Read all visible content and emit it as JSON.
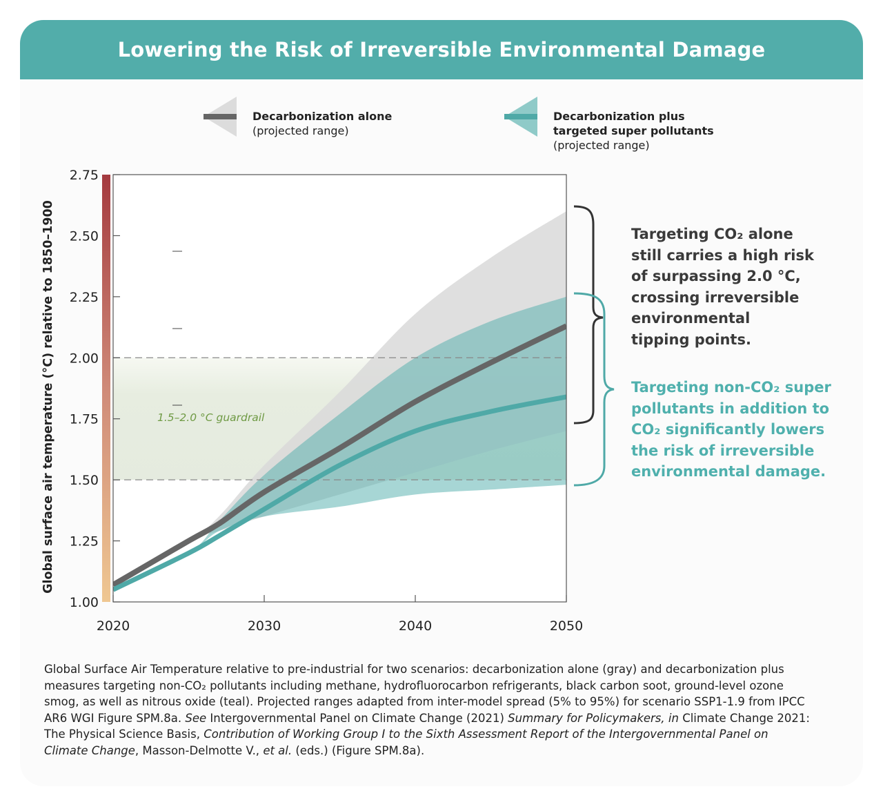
{
  "title": "Lowering the Risk of Irreversible Environmental Damage",
  "legend": [
    {
      "name": "Decarbonization alone",
      "sub": "(projected range)",
      "color": "#666666",
      "band_color": "#dcdcdc"
    },
    {
      "name": "Decarbonization plus targeted super pollutants",
      "name_line1": "Decarbonization plus",
      "name_line2": "targeted super pollutants",
      "sub": "(projected range)",
      "color": "#4fa9a7",
      "band_color": "#8fcac8"
    }
  ],
  "annotations": {
    "gray": [
      "Targeting CO₂ alone",
      "still carries a high risk",
      "of surpassing 2.0 °C,",
      "crossing irreversible",
      "environmental",
      "tipping points."
    ],
    "teal": [
      "Targeting non-CO₂ super",
      "pollutants in addition to",
      "CO₂ significantly lowers",
      "the risk of irreversible",
      "environmental damage."
    ]
  },
  "caption": {
    "p1": "Global Surface Air Temperature relative to pre-industrial for two scenarios: decarbonization alone (gray) and decarbonization plus measures targeting non-CO₂ pollutants including methane, hydrofluorocarbon refrigerants, black carbon soot, ground-level ozone smog, as well as nitrous oxide (teal). Projected ranges adapted from inter-model spread (5% to 95%) for scenario SSP1-1.9 from IPCC AR6 WGI Figure SPM.8a. ",
    "see": "See",
    "p2": " Intergovernmental Panel on Climate Change (2021) ",
    "i1": "Summary for Policymakers, in",
    "p3": " Climate Change 2021: The Physical Science Basis, ",
    "i2": "Contribution of Working Group I to the Sixth Assessment Report of the Intergovernmental Panel on Climate Change",
    "p4": ", Masson-Delmotte V., ",
    "i3": "et al.",
    "p5": " (eds.) (Figure SPM.8a)."
  },
  "chart_data": {
    "type": "line",
    "ylabel": "Global surface air temperature (°C) relative to 1850–1900",
    "xlabel": "",
    "xlim": [
      2020,
      2050
    ],
    "ylim": [
      1.0,
      2.75
    ],
    "xticks": [
      "2020",
      "2030",
      "2040",
      "2050"
    ],
    "yticks": [
      "1.00",
      "1.25",
      "1.50",
      "1.75",
      "2.00",
      "2.25",
      "2.50",
      "2.75"
    ],
    "grid": false,
    "guardrail": {
      "label": "1.5–2.0 °C guardrail",
      "range": [
        1.5,
        2.0
      ],
      "color": "#6f9a45"
    },
    "x": [
      2020,
      2025,
      2027,
      2030,
      2035,
      2040,
      2045,
      2050
    ],
    "series": [
      {
        "name": "Decarbonization alone",
        "color": "#666666",
        "band_color": "#d9d9d9",
        "values": [
          1.07,
          1.25,
          1.32,
          1.45,
          1.63,
          1.82,
          1.98,
          2.13
        ],
        "upper": [
          1.07,
          1.25,
          1.35,
          1.56,
          1.86,
          2.18,
          2.41,
          2.6
        ],
        "lower": [
          1.07,
          1.25,
          1.29,
          1.35,
          1.44,
          1.53,
          1.62,
          1.7
        ]
      },
      {
        "name": "Decarbonization plus targeted super pollutants",
        "color": "#4fa9a7",
        "band_color": "#4fadab",
        "values": [
          1.05,
          1.2,
          1.27,
          1.38,
          1.56,
          1.7,
          1.78,
          1.84
        ],
        "upper": [
          1.05,
          1.2,
          1.33,
          1.52,
          1.77,
          2.0,
          2.15,
          2.25
        ],
        "lower": [
          1.05,
          1.2,
          1.29,
          1.35,
          1.39,
          1.44,
          1.46,
          1.48
        ]
      }
    ]
  }
}
